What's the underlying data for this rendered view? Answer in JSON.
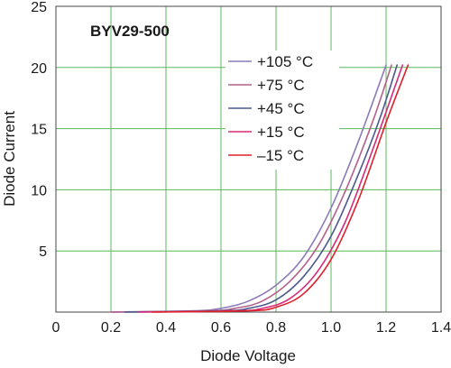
{
  "chart_data": {
    "type": "line",
    "title": "BYV29-500",
    "xlabel": "Diode Voltage",
    "ylabel": "Diode Current",
    "xlim": [
      0,
      1.4
    ],
    "ylim": [
      0,
      25
    ],
    "x_ticks": [
      "0",
      "0.2",
      "0.4",
      "0.6",
      "0.8",
      "1.0",
      "1.2",
      "1.4"
    ],
    "y_ticks": [
      "5",
      "10",
      "15",
      "20",
      "25"
    ],
    "grid": true,
    "legend_position": "top-right",
    "background": "#ffffff",
    "grid_color": "#5cb85c",
    "series": [
      {
        "name": "+105 °C",
        "color": "#8b7bb8",
        "points": [
          [
            0.2,
            0.0
          ],
          [
            0.5,
            0.1
          ],
          [
            0.6,
            0.3
          ],
          [
            0.7,
            0.9
          ],
          [
            0.8,
            2.2
          ],
          [
            0.9,
            4.5
          ],
          [
            1.0,
            8.5
          ],
          [
            1.1,
            14.0
          ],
          [
            1.2,
            20.2
          ]
        ]
      },
      {
        "name": "+75 °C",
        "color": "#b4608a",
        "points": [
          [
            0.2,
            0.0
          ],
          [
            0.55,
            0.1
          ],
          [
            0.65,
            0.3
          ],
          [
            0.75,
            0.9
          ],
          [
            0.85,
            2.5
          ],
          [
            0.95,
            5.3
          ],
          [
            1.05,
            9.8
          ],
          [
            1.15,
            15.5
          ],
          [
            1.22,
            20.2
          ]
        ]
      },
      {
        "name": "+45 °C",
        "color": "#4a5a8c",
        "points": [
          [
            0.25,
            0.0
          ],
          [
            0.6,
            0.1
          ],
          [
            0.7,
            0.3
          ],
          [
            0.8,
            1.0
          ],
          [
            0.9,
            2.9
          ],
          [
            1.0,
            6.2
          ],
          [
            1.1,
            11.3
          ],
          [
            1.18,
            16.0
          ],
          [
            1.24,
            20.2
          ]
        ]
      },
      {
        "name": "+15 °C",
        "color": "#d62a78",
        "points": [
          [
            0.3,
            0.0
          ],
          [
            0.65,
            0.1
          ],
          [
            0.75,
            0.3
          ],
          [
            0.85,
            1.1
          ],
          [
            0.95,
            3.3
          ],
          [
            1.05,
            7.3
          ],
          [
            1.15,
            13.2
          ],
          [
            1.26,
            20.2
          ]
        ]
      },
      {
        "name": "–15 °C",
        "color": "#e0202a",
        "points": [
          [
            0.35,
            0.0
          ],
          [
            0.7,
            0.1
          ],
          [
            0.8,
            0.4
          ],
          [
            0.9,
            1.5
          ],
          [
            1.0,
            4.3
          ],
          [
            1.1,
            9.2
          ],
          [
            1.2,
            15.5
          ],
          [
            1.28,
            20.2
          ]
        ]
      }
    ]
  }
}
